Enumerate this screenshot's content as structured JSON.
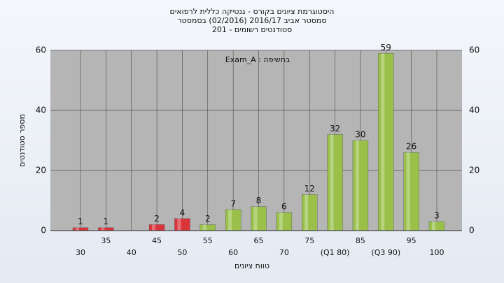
{
  "chart_data": {
    "type": "bar",
    "title_lines": [
      "היסטוגרמת ציונים בקורס - גנטיקה כללית לרפואים",
      "סמסטר אביב 2016/17 (02/2016) בסמסטר",
      "סטודנטים רשומים - 201"
    ],
    "legend_text": "Exam_A : בחשיפה",
    "y_label": "מספר סטודנטים",
    "x_label": "טווח ציונים",
    "categories": [
      "30",
      "35",
      "40",
      "45",
      "50",
      "55",
      "60",
      "65",
      "70",
      "75",
      "(Q1 80)",
      "85",
      "(Q3 90)",
      "95",
      "100"
    ],
    "values": [
      1,
      1,
      null,
      2,
      4,
      2,
      7,
      8,
      6,
      12,
      32,
      30,
      59,
      26,
      3
    ],
    "colors": [
      "#d9343a",
      "#d9343a",
      "#d9343a",
      "#d9343a",
      "#d9343a",
      "#9ac04a",
      "#9ac04a",
      "#9ac04a",
      "#9ac04a",
      "#9ac04a",
      "#9ac04a",
      "#9ac04a",
      "#9ac04a",
      "#9ac04a",
      "#9ac04a"
    ],
    "ylim": [
      0,
      60
    ],
    "yticks": [
      0,
      20,
      40,
      60
    ],
    "grid": true
  }
}
